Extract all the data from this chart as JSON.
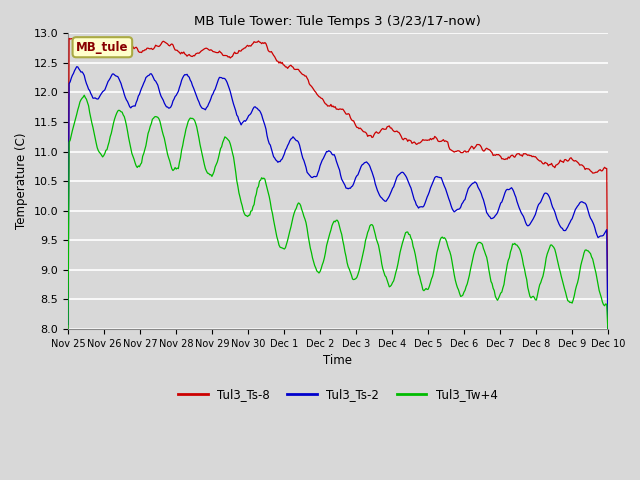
{
  "title": "MB Tule Tower: Tule Temps 3 (3/23/17-now)",
  "xlabel": "Time",
  "ylabel": "Temperature (C)",
  "ylim": [
    8.0,
    13.0
  ],
  "yticks": [
    8.0,
    8.5,
    9.0,
    9.5,
    10.0,
    10.5,
    11.0,
    11.5,
    12.0,
    12.5,
    13.0
  ],
  "bg_color": "#d8d8d8",
  "plot_bg_color": "#d8d8d8",
  "grid_color": "#ffffff",
  "line_colors": {
    "Tul3_Ts-8": "#cc0000",
    "Tul3_Ts-2": "#0000cc",
    "Tul3_Tw+4": "#00bb00"
  },
  "legend_label": "MB_tule",
  "legend_bg": "#ffffcc",
  "legend_border": "#aaaa44",
  "xtick_labels": [
    "Nov 25",
    "Nov 26",
    "Nov 27",
    "Nov 28",
    "Nov 29",
    "Nov 30",
    "Dec 1",
    "Dec 2",
    "Dec 3",
    "Dec 4",
    "Dec 5",
    "Dec 6",
    "Dec 7",
    "Dec 8",
    "Dec 9",
    "Dec 10"
  ],
  "n_points": 500
}
